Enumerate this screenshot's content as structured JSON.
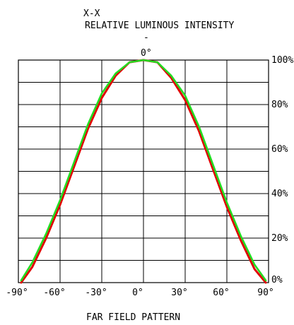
{
  "chart_data": {
    "type": "line",
    "title": "RELATIVE LUMINOUS INTENSITY",
    "section_label": "X-X",
    "subtitle": "FAR FIELD PATTERN",
    "top_tick": "0°",
    "dash_mark": "-",
    "x_tick_labels": [
      "-90°",
      "-60°",
      "-30°",
      "0°",
      "30°",
      "60°",
      "90°"
    ],
    "y_tick_labels": [
      "0%",
      "20%",
      "40%",
      "60%",
      "80%",
      "100%"
    ],
    "xlim": [
      -90,
      90
    ],
    "ylim": [
      0,
      100
    ],
    "grid": true,
    "series": [
      {
        "color": "#e00000",
        "x": [
          -88,
          -80,
          -70,
          -60,
          -50,
          -40,
          -30,
          -20,
          -10,
          0,
          10,
          20,
          30,
          40,
          50,
          60,
          70,
          80,
          88
        ],
        "values": [
          0,
          7,
          20,
          35,
          52,
          69,
          83,
          93,
          99,
          100,
          99,
          92,
          82,
          68,
          51,
          34,
          19,
          6,
          0
        ]
      },
      {
        "color": "#22dd22",
        "x": [
          -88,
          -80,
          -70,
          -60,
          -50,
          -40,
          -30,
          -20,
          -10,
          0,
          10,
          20,
          30,
          40,
          50,
          60,
          70,
          80,
          88
        ],
        "values": [
          1,
          9,
          22,
          37,
          54,
          71,
          85,
          94,
          99,
          100,
          99,
          93,
          84,
          70,
          53,
          36,
          21,
          8,
          1
        ]
      }
    ]
  }
}
